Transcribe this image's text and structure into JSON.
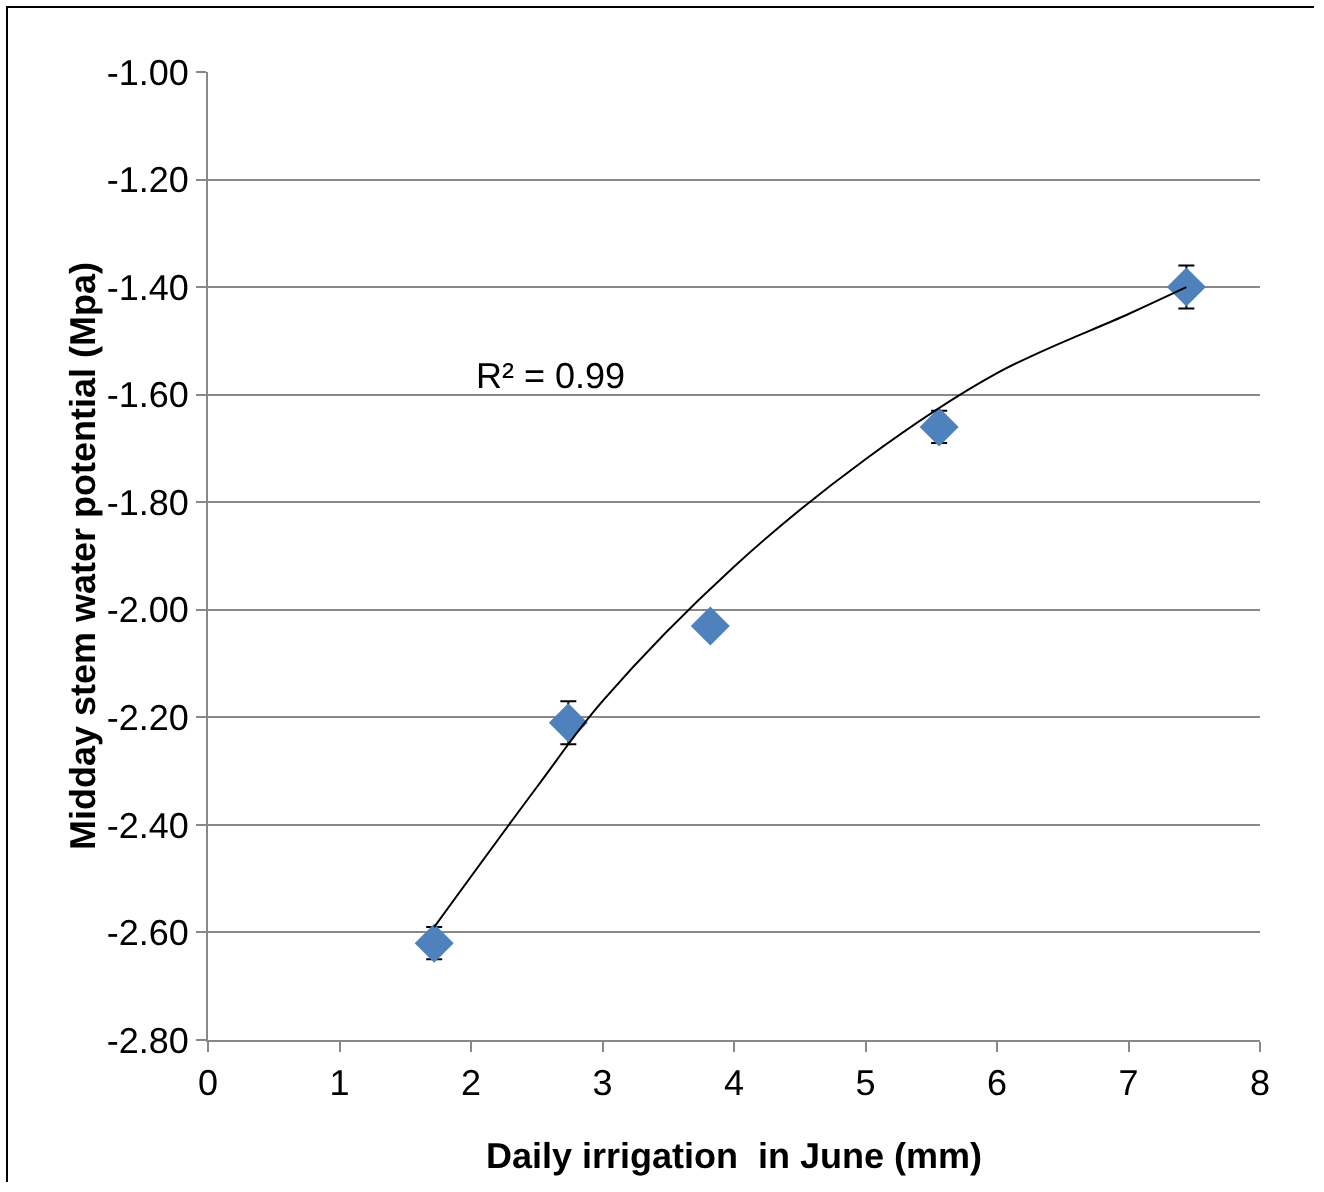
{
  "chart_data": {
    "type": "scatter",
    "xlabel": "Daily irrigation  in June (mm)",
    "ylabel": "Midday stem water potential (Mpa)",
    "annotations": [
      "R² = 0.99"
    ],
    "series": [
      {
        "color": "#4f81bd",
        "marker": "diamond",
        "x": [
          1.72,
          2.74,
          3.82,
          5.56,
          7.44
        ],
        "values": [
          -2.62,
          -2.21,
          -2.03,
          -1.66,
          -1.4
        ],
        "errors": [
          0.03,
          0.04,
          null,
          0.03,
          0.04
        ]
      },
      {
        "type": "line",
        "color": "#000000",
        "marker": "none",
        "line_style": "solid",
        "x": [
          1.72,
          2.5,
          3.0,
          4.0,
          5.0,
          6.0,
          7.0,
          7.44
        ],
        "values": [
          -2.59,
          -2.33,
          -2.17,
          -1.92,
          -1.72,
          -1.56,
          -1.45,
          -1.4
        ]
      }
    ],
    "xlim": [
      0,
      8
    ],
    "xticks": [
      0,
      1,
      2,
      3,
      4,
      5,
      6,
      7,
      8
    ],
    "ylim": [
      -2.8,
      -1.0
    ],
    "yticks": [
      {
        "value": -2.8,
        "label": "-2.80"
      },
      {
        "value": -2.6,
        "label": "-2.60"
      },
      {
        "value": -2.4,
        "label": "-2.40"
      },
      {
        "value": -2.2,
        "label": "-2.20"
      },
      {
        "value": -2.0,
        "label": "-2.00"
      },
      {
        "value": -1.8,
        "label": "-1.80"
      },
      {
        "value": -1.6,
        "label": "-1.60"
      },
      {
        "value": -1.4,
        "label": "-1.40"
      },
      {
        "value": -1.2,
        "label": "-1.20"
      },
      {
        "value": -1.0,
        "label": "-1.00"
      }
    ],
    "grid": "y"
  }
}
